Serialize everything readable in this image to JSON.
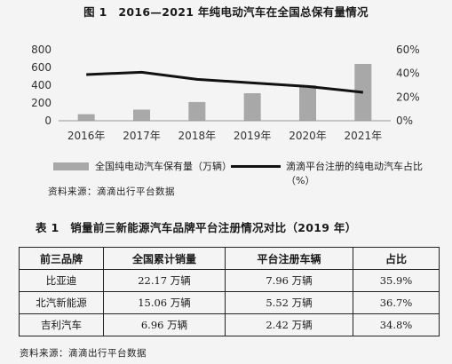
{
  "figure": {
    "title": "图 1　2016—2021 年纯电动汽车在全国总保有量情况",
    "source": "资料来源：滴滴出行平台数据",
    "legend": {
      "bar": "全国纯电动汽车保有量（万辆）",
      "line": "滴滴平台注册的纯电动汽车占比（%）"
    },
    "colors": {
      "bar": "#a8a8a8",
      "line": "#111111"
    }
  },
  "chart_data": {
    "type": "bar",
    "categories": [
      "2016年",
      "2017年",
      "2018年",
      "2019年",
      "2020年",
      "2021年"
    ],
    "series": [
      {
        "type": "bar",
        "axis": "left",
        "values": [
          74,
          125,
          211,
          310,
          400,
          640
        ]
      },
      {
        "type": "line",
        "axis": "right",
        "values": [
          39,
          41,
          35,
          32,
          29,
          24
        ]
      }
    ],
    "y_left": {
      "ticks": [
        "0",
        "200",
        "400",
        "600",
        "800"
      ],
      "ylim": [
        0,
        800
      ]
    },
    "y_right": {
      "ticks": [
        "0%",
        "20%",
        "40%",
        "60%"
      ],
      "ylim": [
        0,
        60
      ]
    },
    "grid": false,
    "legend_position": "bottom"
  },
  "table": {
    "title": "表 1　销量前三新能源汽车品牌平台注册情况对比（2019 年）",
    "headers": [
      "前三品牌",
      "全国累计销量",
      "平台注册车辆",
      "占比"
    ],
    "rows": [
      [
        "比亚迪",
        "22.17 万辆",
        "7.96 万辆",
        "35.9%"
      ],
      [
        "北汽新能源",
        "15.06 万辆",
        "5.52 万辆",
        "36.7%"
      ],
      [
        "吉利汽车",
        "6.96 万辆",
        "2.42 万辆",
        "34.8%"
      ]
    ],
    "source": "资料来源：滴滴出行平台数据"
  }
}
